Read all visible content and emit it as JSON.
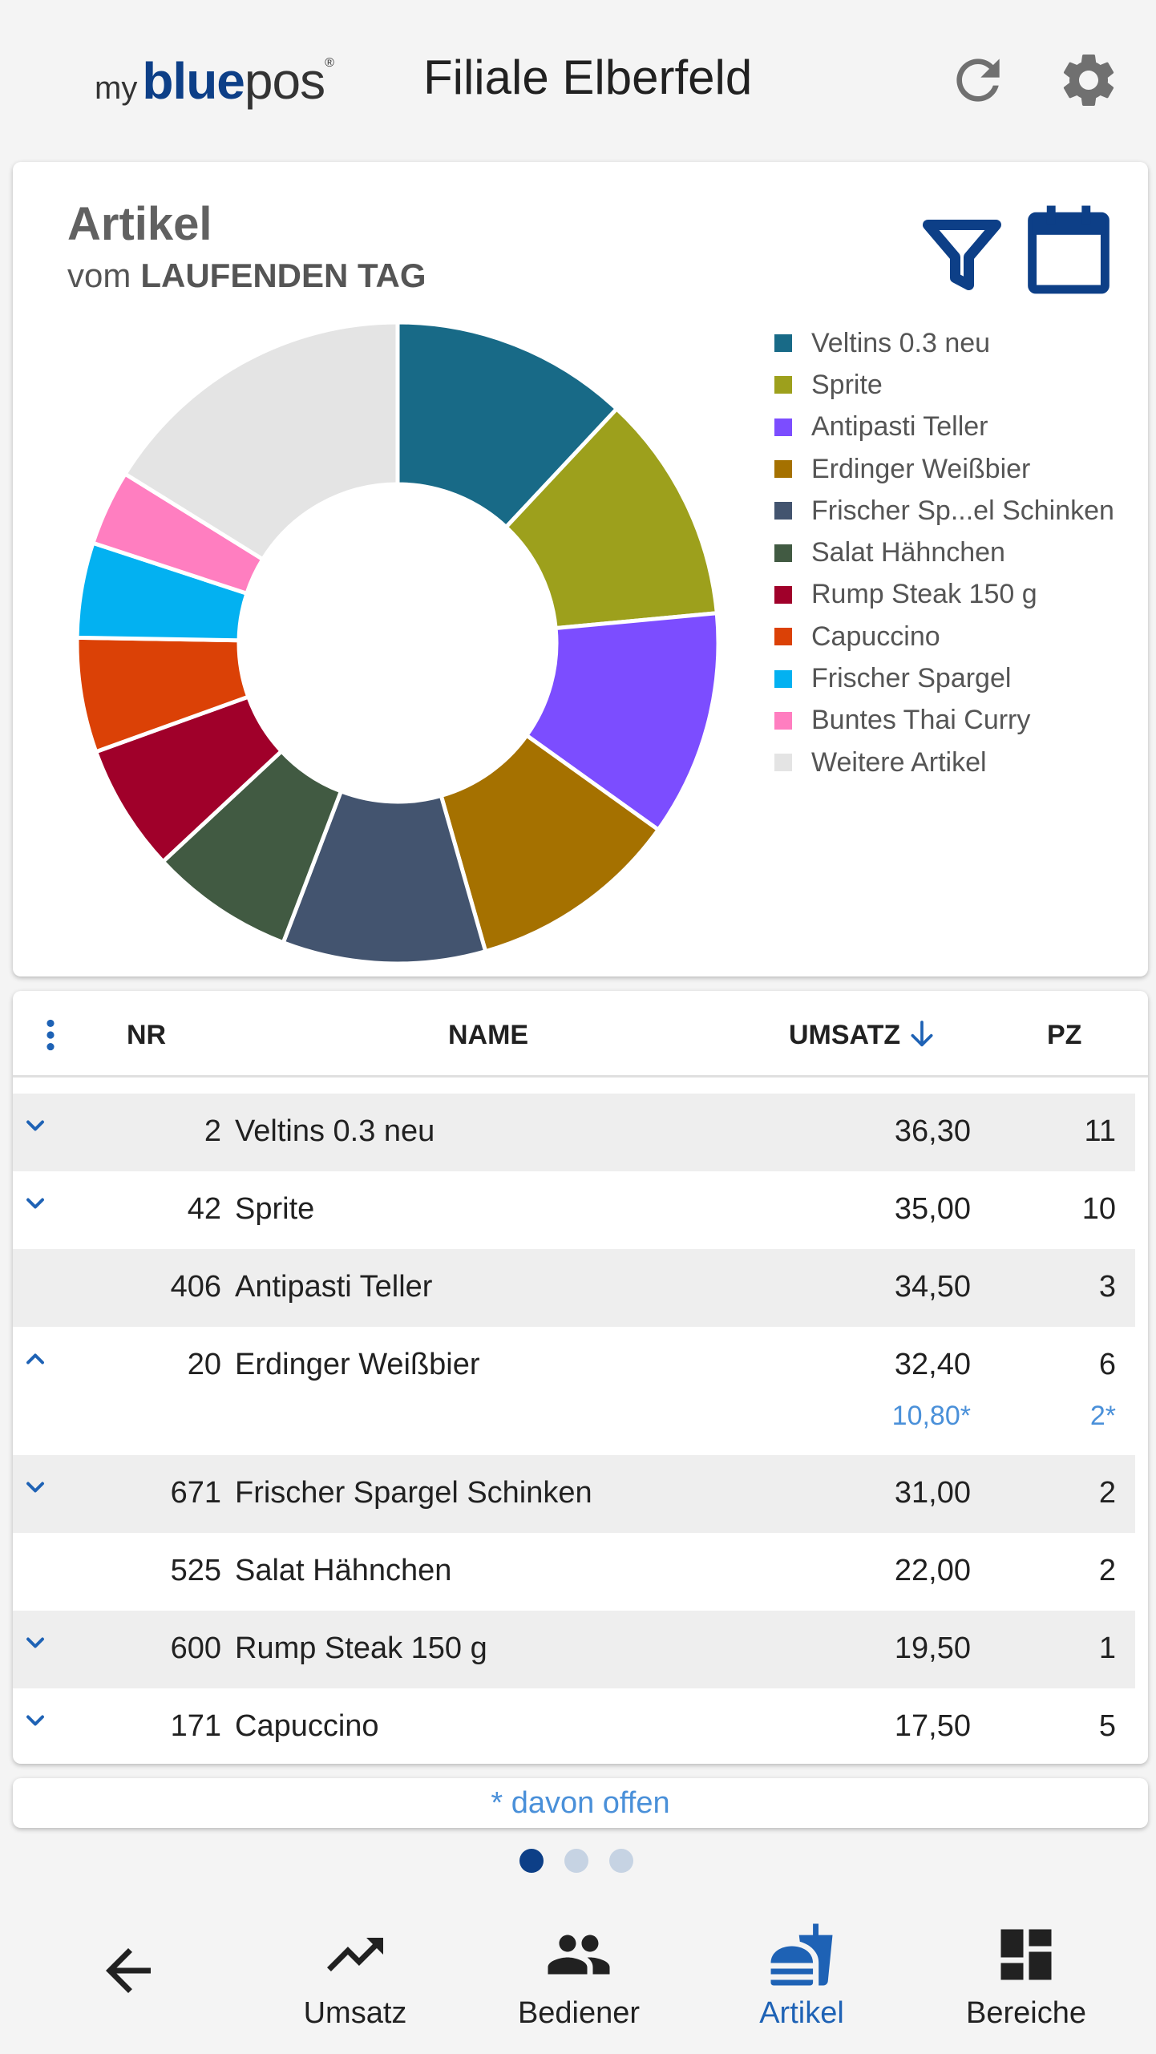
{
  "header": {
    "logo": {
      "my": "my",
      "blue": "blue",
      "pos": "pos",
      "reg": "®"
    },
    "title": "Filiale Elberfeld",
    "icons": [
      "refresh-icon",
      "gear-icon"
    ]
  },
  "chart_card": {
    "title": "Artikel",
    "subtitle_prefix": "vom",
    "subtitle_strong": "LAUFENDEN TAG",
    "icons": [
      "filter-icon",
      "calendar-icon"
    ]
  },
  "chart_data": {
    "type": "pie",
    "variant": "donut",
    "legend_position": "right",
    "series": [
      {
        "name": "Veltins 0.3 neu",
        "value": 36.3,
        "color": "#186a87"
      },
      {
        "name": "Sprite",
        "value": 35.0,
        "color": "#9da01c"
      },
      {
        "name": "Antipasti Teller",
        "value": 34.5,
        "color": "#7c4dff"
      },
      {
        "name": "Erdinger Weißbier",
        "value": 32.4,
        "color": "#a57100"
      },
      {
        "name": "Frischer Sp...el Schinken",
        "value": 31.0,
        "color": "#43546f"
      },
      {
        "name": "Salat Hähnchen",
        "value": 22.0,
        "color": "#415a42"
      },
      {
        "name": "Rump Steak 150 g",
        "value": 19.5,
        "color": "#a0002a"
      },
      {
        "name": "Capuccino",
        "value": 17.5,
        "color": "#db4106"
      },
      {
        "name": "Frischer Spargel",
        "value": 14.5,
        "color": "#03b1f1"
      },
      {
        "name": "Buntes Thai Curry",
        "value": 11.5,
        "color": "#ff7ec0"
      },
      {
        "name": "Weitere Artikel",
        "value": 49.0,
        "color": "#e4e4e4"
      }
    ]
  },
  "table": {
    "headers": {
      "nr": "NR",
      "name": "NAME",
      "umsatz": "UMSATZ",
      "pz": "PZ"
    },
    "sort_column": "umsatz",
    "sort_direction": "desc",
    "rows": [
      {
        "nr": "2",
        "name": "Veltins 0.3 neu",
        "umsatz": "36,30",
        "pz": "11",
        "chevron": "down"
      },
      {
        "nr": "42",
        "name": "Sprite",
        "umsatz": "35,00",
        "pz": "10",
        "chevron": "down"
      },
      {
        "nr": "406",
        "name": "Antipasti Teller",
        "umsatz": "34,50",
        "pz": "3",
        "chevron": ""
      },
      {
        "nr": "20",
        "name": "Erdinger Weißbier",
        "umsatz": "32,40",
        "pz": "6",
        "chevron": "up",
        "sub_umsatz": "10,80*",
        "sub_pz": "2*"
      },
      {
        "nr": "671",
        "name": "Frischer Spargel Schinken",
        "umsatz": "31,00",
        "pz": "2",
        "chevron": "down"
      },
      {
        "nr": "525",
        "name": "Salat Hähnchen",
        "umsatz": "22,00",
        "pz": "2",
        "chevron": ""
      },
      {
        "nr": "600",
        "name": "Rump Steak 150 g",
        "umsatz": "19,50",
        "pz": "1",
        "chevron": "down"
      },
      {
        "nr": "171",
        "name": "Capuccino",
        "umsatz": "17,50",
        "pz": "5",
        "chevron": "down"
      }
    ]
  },
  "footnote": "* davon offen",
  "pagination": {
    "pages": 3,
    "active": 1
  },
  "nav": {
    "back_icon": "arrow-left-icon",
    "items": [
      {
        "label": "Umsatz",
        "icon": "trending-up-icon"
      },
      {
        "label": "Bediener",
        "icon": "people-icon"
      },
      {
        "label": "Artikel",
        "icon": "fastfood-icon",
        "active": true
      },
      {
        "label": "Bereiche",
        "icon": "dashboard-icon"
      }
    ]
  },
  "colors": {
    "brand": "#0d3f87",
    "accent": "#1e62b5",
    "open_value": "#4a90d9"
  }
}
